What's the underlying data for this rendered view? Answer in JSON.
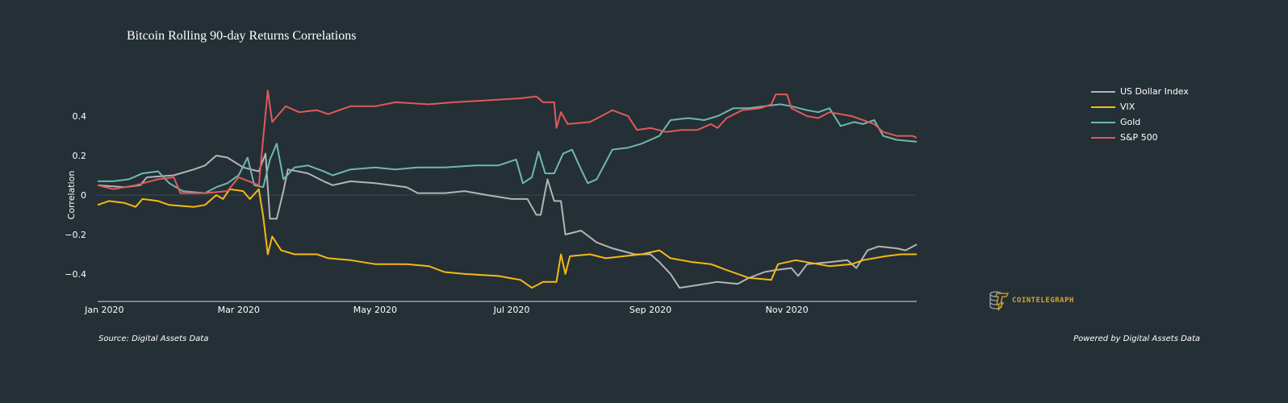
{
  "chart_data": {
    "type": "line",
    "title": "Bitcoin Rolling 90-day Returns Correlations",
    "xlabel": "",
    "ylabel": "Correlation",
    "xlim": [
      "2019-12-29",
      "2020-12-29"
    ],
    "ylim": [
      -0.535,
      0.58
    ],
    "x_ticks": [
      {
        "date": "2020-01-01",
        "label": "Jan 2020"
      },
      {
        "date": "2020-03-01",
        "label": "Mar 2020"
      },
      {
        "date": "2020-05-01",
        "label": "May 2020"
      },
      {
        "date": "2020-07-01",
        "label": "Jul 2020"
      },
      {
        "date": "2020-09-01",
        "label": "Sep 2020"
      },
      {
        "date": "2020-11-01",
        "label": "Nov 2020"
      }
    ],
    "y_ticks": [
      {
        "value": 0.4,
        "label": "0.4"
      },
      {
        "value": 0.2,
        "label": "0.2"
      },
      {
        "value": 0,
        "label": "0"
      },
      {
        "value": -0.2,
        "label": "−0.2"
      },
      {
        "value": -0.4,
        "label": "−0.4"
      }
    ],
    "grid": "zero-line only",
    "legend_position": "top-right",
    "series": [
      {
        "name": "US Dollar Index",
        "color": "#b4b4b4",
        "points": [
          [
            "2019-12-29",
            0.05
          ],
          [
            "2020-01-10",
            0.04
          ],
          [
            "2020-01-17",
            0.05
          ],
          [
            "2020-01-20",
            0.09
          ],
          [
            "2020-02-01",
            0.1
          ],
          [
            "2020-02-10",
            0.13
          ],
          [
            "2020-02-15",
            0.15
          ],
          [
            "2020-02-20",
            0.2
          ],
          [
            "2020-02-25",
            0.19
          ],
          [
            "2020-03-03",
            0.14
          ],
          [
            "2020-03-10",
            0.12
          ],
          [
            "2020-03-13",
            0.21
          ],
          [
            "2020-03-15",
            -0.12
          ],
          [
            "2020-03-18",
            -0.12
          ],
          [
            "2020-03-21",
            0.02
          ],
          [
            "2020-03-23",
            0.13
          ],
          [
            "2020-04-01",
            0.11
          ],
          [
            "2020-04-08",
            0.07
          ],
          [
            "2020-04-12",
            0.05
          ],
          [
            "2020-04-20",
            0.07
          ],
          [
            "2020-05-01",
            0.06
          ],
          [
            "2020-05-15",
            0.04
          ],
          [
            "2020-05-20",
            0.01
          ],
          [
            "2020-06-01",
            0.01
          ],
          [
            "2020-06-10",
            0.02
          ],
          [
            "2020-06-20",
            0.0
          ],
          [
            "2020-07-01",
            -0.02
          ],
          [
            "2020-07-08",
            -0.02
          ],
          [
            "2020-07-12",
            -0.1
          ],
          [
            "2020-07-14",
            -0.1
          ],
          [
            "2020-07-17",
            0.08
          ],
          [
            "2020-07-20",
            -0.03
          ],
          [
            "2020-07-23",
            -0.03
          ],
          [
            "2020-07-25",
            -0.2
          ],
          [
            "2020-08-01",
            -0.18
          ],
          [
            "2020-08-08",
            -0.24
          ],
          [
            "2020-08-15",
            -0.27
          ],
          [
            "2020-08-25",
            -0.3
          ],
          [
            "2020-09-01",
            -0.3
          ],
          [
            "2020-09-05",
            -0.34
          ],
          [
            "2020-09-10",
            -0.4
          ],
          [
            "2020-09-14",
            -0.47
          ],
          [
            "2020-09-20",
            -0.46
          ],
          [
            "2020-10-01",
            -0.44
          ],
          [
            "2020-10-10",
            -0.45
          ],
          [
            "2020-10-15",
            -0.42
          ],
          [
            "2020-10-22",
            -0.39
          ],
          [
            "2020-10-27",
            -0.38
          ],
          [
            "2020-11-03",
            -0.37
          ],
          [
            "2020-11-06",
            -0.41
          ],
          [
            "2020-11-10",
            -0.35
          ],
          [
            "2020-11-20",
            -0.34
          ],
          [
            "2020-11-28",
            -0.33
          ],
          [
            "2020-12-02",
            -0.37
          ],
          [
            "2020-12-07",
            -0.28
          ],
          [
            "2020-12-12",
            -0.26
          ],
          [
            "2020-12-20",
            -0.27
          ],
          [
            "2020-12-24",
            -0.28
          ],
          [
            "2020-12-29",
            -0.25
          ]
        ]
      },
      {
        "name": "VIX",
        "color": "#f5b915",
        "points": [
          [
            "2019-12-29",
            -0.05
          ],
          [
            "2020-01-03",
            -0.03
          ],
          [
            "2020-01-10",
            -0.04
          ],
          [
            "2020-01-15",
            -0.06
          ],
          [
            "2020-01-18",
            -0.02
          ],
          [
            "2020-01-25",
            -0.03
          ],
          [
            "2020-01-30",
            -0.05
          ],
          [
            "2020-02-10",
            -0.06
          ],
          [
            "2020-02-15",
            -0.05
          ],
          [
            "2020-02-20",
            0.0
          ],
          [
            "2020-02-23",
            -0.02
          ],
          [
            "2020-02-26",
            0.03
          ],
          [
            "2020-03-03",
            0.02
          ],
          [
            "2020-03-06",
            -0.02
          ],
          [
            "2020-03-10",
            0.03
          ],
          [
            "2020-03-12",
            -0.11
          ],
          [
            "2020-03-14",
            -0.3
          ],
          [
            "2020-03-16",
            -0.21
          ],
          [
            "2020-03-20",
            -0.28
          ],
          [
            "2020-03-26",
            -0.3
          ],
          [
            "2020-04-05",
            -0.3
          ],
          [
            "2020-04-10",
            -0.32
          ],
          [
            "2020-04-20",
            -0.33
          ],
          [
            "2020-05-01",
            -0.35
          ],
          [
            "2020-05-15",
            -0.35
          ],
          [
            "2020-05-25",
            -0.36
          ],
          [
            "2020-06-01",
            -0.39
          ],
          [
            "2020-06-10",
            -0.4
          ],
          [
            "2020-06-25",
            -0.41
          ],
          [
            "2020-07-05",
            -0.43
          ],
          [
            "2020-07-10",
            -0.47
          ],
          [
            "2020-07-15",
            -0.44
          ],
          [
            "2020-07-21",
            -0.44
          ],
          [
            "2020-07-23",
            -0.3
          ],
          [
            "2020-07-25",
            -0.4
          ],
          [
            "2020-07-27",
            -0.31
          ],
          [
            "2020-08-05",
            -0.3
          ],
          [
            "2020-08-12",
            -0.32
          ],
          [
            "2020-08-20",
            -0.31
          ],
          [
            "2020-08-28",
            -0.3
          ],
          [
            "2020-09-05",
            -0.28
          ],
          [
            "2020-09-10",
            -0.32
          ],
          [
            "2020-09-20",
            -0.34
          ],
          [
            "2020-09-28",
            -0.35
          ],
          [
            "2020-10-05",
            -0.38
          ],
          [
            "2020-10-15",
            -0.42
          ],
          [
            "2020-10-25",
            -0.43
          ],
          [
            "2020-10-28",
            -0.35
          ],
          [
            "2020-11-05",
            -0.33
          ],
          [
            "2020-11-10",
            -0.34
          ],
          [
            "2020-11-20",
            -0.36
          ],
          [
            "2020-11-30",
            -0.35
          ],
          [
            "2020-12-05",
            -0.33
          ],
          [
            "2020-12-15",
            -0.31
          ],
          [
            "2020-12-22",
            -0.3
          ],
          [
            "2020-12-29",
            -0.3
          ]
        ]
      },
      {
        "name": "Gold",
        "color": "#6fb8ad",
        "points": [
          [
            "2019-12-29",
            0.07
          ],
          [
            "2020-01-05",
            0.07
          ],
          [
            "2020-01-12",
            0.08
          ],
          [
            "2020-01-18",
            0.11
          ],
          [
            "2020-01-25",
            0.12
          ],
          [
            "2020-01-30",
            0.06
          ],
          [
            "2020-02-05",
            0.02
          ],
          [
            "2020-02-15",
            0.01
          ],
          [
            "2020-02-20",
            0.04
          ],
          [
            "2020-02-25",
            0.06
          ],
          [
            "2020-03-01",
            0.1
          ],
          [
            "2020-03-05",
            0.19
          ],
          [
            "2020-03-08",
            0.05
          ],
          [
            "2020-03-12",
            0.04
          ],
          [
            "2020-03-15",
            0.18
          ],
          [
            "2020-03-18",
            0.26
          ],
          [
            "2020-03-21",
            0.08
          ],
          [
            "2020-03-26",
            0.14
          ],
          [
            "2020-04-01",
            0.15
          ],
          [
            "2020-04-08",
            0.12
          ],
          [
            "2020-04-12",
            0.1
          ],
          [
            "2020-04-20",
            0.13
          ],
          [
            "2020-05-01",
            0.14
          ],
          [
            "2020-05-10",
            0.13
          ],
          [
            "2020-05-20",
            0.14
          ],
          [
            "2020-06-01",
            0.14
          ],
          [
            "2020-06-15",
            0.15
          ],
          [
            "2020-06-25",
            0.15
          ],
          [
            "2020-07-03",
            0.18
          ],
          [
            "2020-07-06",
            0.06
          ],
          [
            "2020-07-10",
            0.09
          ],
          [
            "2020-07-13",
            0.22
          ],
          [
            "2020-07-16",
            0.11
          ],
          [
            "2020-07-20",
            0.11
          ],
          [
            "2020-07-24",
            0.21
          ],
          [
            "2020-07-28",
            0.23
          ],
          [
            "2020-08-01",
            0.13
          ],
          [
            "2020-08-04",
            0.06
          ],
          [
            "2020-08-08",
            0.08
          ],
          [
            "2020-08-15",
            0.23
          ],
          [
            "2020-08-22",
            0.24
          ],
          [
            "2020-08-28",
            0.26
          ],
          [
            "2020-09-05",
            0.3
          ],
          [
            "2020-09-10",
            0.38
          ],
          [
            "2020-09-18",
            0.39
          ],
          [
            "2020-09-25",
            0.38
          ],
          [
            "2020-10-01",
            0.4
          ],
          [
            "2020-10-08",
            0.44
          ],
          [
            "2020-10-15",
            0.44
          ],
          [
            "2020-10-22",
            0.45
          ],
          [
            "2020-10-29",
            0.46
          ],
          [
            "2020-11-03",
            0.45
          ],
          [
            "2020-11-10",
            0.43
          ],
          [
            "2020-11-15",
            0.42
          ],
          [
            "2020-11-20",
            0.44
          ],
          [
            "2020-11-25",
            0.35
          ],
          [
            "2020-12-01",
            0.37
          ],
          [
            "2020-12-05",
            0.36
          ],
          [
            "2020-12-10",
            0.38
          ],
          [
            "2020-12-14",
            0.3
          ],
          [
            "2020-12-20",
            0.28
          ],
          [
            "2020-12-29",
            0.27
          ]
        ]
      },
      {
        "name": "S&P 500",
        "color": "#e05a5a",
        "points": [
          [
            "2019-12-29",
            0.05
          ],
          [
            "2020-01-05",
            0.03
          ],
          [
            "2020-01-15",
            0.05
          ],
          [
            "2020-01-25",
            0.08
          ],
          [
            "2020-02-01",
            0.09
          ],
          [
            "2020-02-04",
            0.01
          ],
          [
            "2020-02-15",
            0.01
          ],
          [
            "2020-02-25",
            0.02
          ],
          [
            "2020-03-01",
            0.09
          ],
          [
            "2020-03-10",
            0.05
          ],
          [
            "2020-03-12",
            0.29
          ],
          [
            "2020-03-14",
            0.53
          ],
          [
            "2020-03-16",
            0.37
          ],
          [
            "2020-03-22",
            0.45
          ],
          [
            "2020-03-28",
            0.42
          ],
          [
            "2020-04-05",
            0.43
          ],
          [
            "2020-04-10",
            0.41
          ],
          [
            "2020-04-20",
            0.45
          ],
          [
            "2020-05-01",
            0.45
          ],
          [
            "2020-05-10",
            0.47
          ],
          [
            "2020-05-25",
            0.46
          ],
          [
            "2020-06-05",
            0.47
          ],
          [
            "2020-06-20",
            0.48
          ],
          [
            "2020-07-05",
            0.49
          ],
          [
            "2020-07-12",
            0.5
          ],
          [
            "2020-07-15",
            0.47
          ],
          [
            "2020-07-20",
            0.47
          ],
          [
            "2020-07-21",
            0.34
          ],
          [
            "2020-07-23",
            0.42
          ],
          [
            "2020-07-26",
            0.36
          ],
          [
            "2020-08-05",
            0.37
          ],
          [
            "2020-08-10",
            0.4
          ],
          [
            "2020-08-15",
            0.43
          ],
          [
            "2020-08-22",
            0.4
          ],
          [
            "2020-08-26",
            0.33
          ],
          [
            "2020-09-01",
            0.34
          ],
          [
            "2020-09-08",
            0.32
          ],
          [
            "2020-09-15",
            0.33
          ],
          [
            "2020-09-22",
            0.33
          ],
          [
            "2020-09-28",
            0.36
          ],
          [
            "2020-10-01",
            0.34
          ],
          [
            "2020-10-05",
            0.39
          ],
          [
            "2020-10-12",
            0.43
          ],
          [
            "2020-10-20",
            0.44
          ],
          [
            "2020-10-25",
            0.46
          ],
          [
            "2020-10-27",
            0.51
          ],
          [
            "2020-11-01",
            0.51
          ],
          [
            "2020-11-03",
            0.44
          ],
          [
            "2020-11-10",
            0.4
          ],
          [
            "2020-11-15",
            0.39
          ],
          [
            "2020-11-20",
            0.42
          ],
          [
            "2020-11-30",
            0.4
          ],
          [
            "2020-12-05",
            0.38
          ],
          [
            "2020-12-10",
            0.36
          ],
          [
            "2020-12-14",
            0.32
          ],
          [
            "2020-12-20",
            0.3
          ],
          [
            "2020-12-27",
            0.3
          ],
          [
            "2020-12-29",
            0.29
          ]
        ]
      }
    ]
  },
  "footer": {
    "source": "Source: Digital Assets Data",
    "powered_by": "Powered by Digital Assets Data"
  },
  "logo": {
    "text": "COINTELEGRAPH",
    "color": "#d4a72c"
  }
}
